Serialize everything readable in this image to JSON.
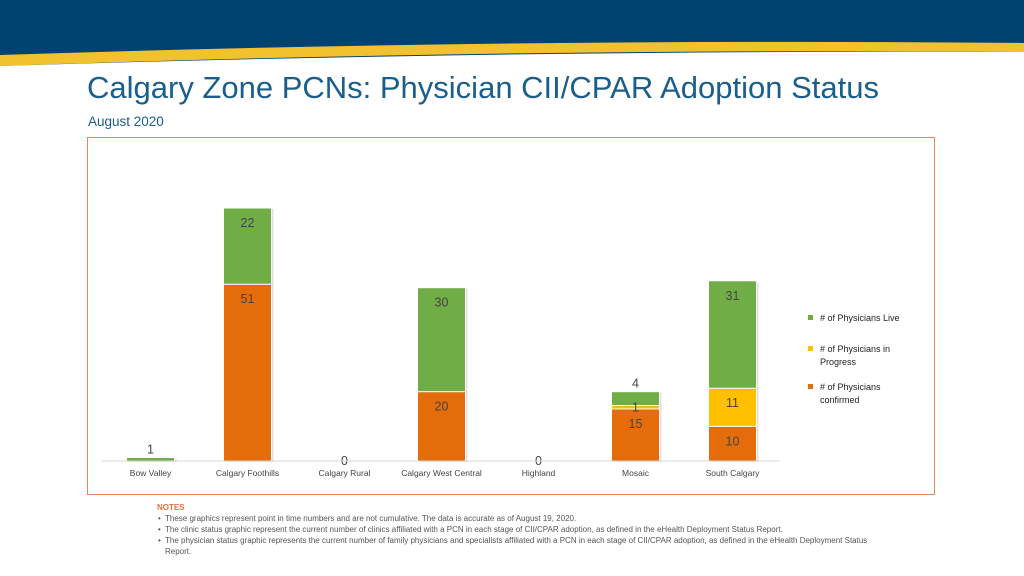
{
  "header": {
    "title": "Calgary Zone PCNs: Physician CII/CPAR Adoption Status",
    "subtitle": "August 2020"
  },
  "colors": {
    "navy": "#004272",
    "gold": "#f2c12e",
    "live": "#70ad47",
    "in_progress": "#ffc000",
    "confirmed": "#e46c0a"
  },
  "chart_data": {
    "type": "bar",
    "stacked": true,
    "categories": [
      "Bow Valley",
      "Calgary Foothills",
      "Calgary Rural",
      "Calgary West Central",
      "Highland",
      "Mosaic",
      "South Calgary"
    ],
    "series": [
      {
        "name": "# of Physicians confirmed",
        "color": "#e46c0a",
        "values": [
          0,
          51,
          0,
          20,
          0,
          15,
          10
        ]
      },
      {
        "name": "# of Physicians in Progress",
        "color": "#ffc000",
        "values": [
          0,
          0,
          0,
          0,
          0,
          1,
          11
        ]
      },
      {
        "name": "# of Physicians Live",
        "color": "#70ad47",
        "values": [
          1,
          22,
          0,
          30,
          0,
          4,
          31
        ]
      }
    ],
    "zero_labels": [
      "Calgary Rural",
      "Highland"
    ],
    "legend_order": [
      "# of Physicians Live",
      "# of Physicians in Progress",
      "# of Physicians confirmed"
    ],
    "legend_position": "right",
    "ylim": [
      0,
      73
    ],
    "grid": false
  },
  "notes": {
    "title": "NOTES",
    "items": [
      "These graphics represent point in time numbers and are not cumulative. The data is accurate as of August 19, 2020.",
      "The clinic status graphic represent the current number of clinics affiliated with a PCN in each stage of CII/CPAR adoption, as defined in the eHealth Deployment Status Report.",
      "The physician status graphic represents the current number of family physicians and specialists affiliated with a PCN in each stage of CII/CPAR adoption, as defined in the eHealth Deployment Status Report."
    ]
  }
}
